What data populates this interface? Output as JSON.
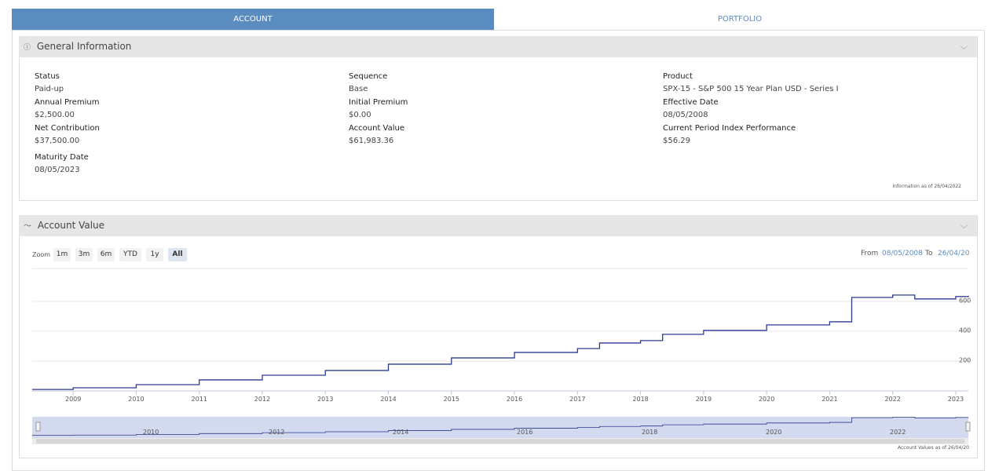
{
  "tabs": [
    "ACCOUNT",
    "PORTFOLIO"
  ],
  "general_info": {
    "title": "General Information",
    "columns": [
      [
        {
          "label": "Status",
          "value": "Paid-up"
        },
        {
          "label": "Annual Premium",
          "value": "$2,500.00"
        },
        {
          "label": "Net Contribution",
          "value": "$37,500.00"
        },
        {
          "label": "Maturity Date",
          "value": "08/05/2023"
        }
      ],
      [
        {
          "label": "Sequence",
          "value": "Base"
        },
        {
          "label": "Initial Premium",
          "value": "$0.00"
        },
        {
          "label": "Account Value",
          "value": "$61,983.36"
        }
      ],
      [
        {
          "label": "Product",
          "value": "SPX-15 - S&P 500 15 Year Plan USD - Series I"
        },
        {
          "label": "Effective Date",
          "value": "08/05/2008"
        },
        {
          "label": "Current Period Index Performance",
          "value": "$56.29"
        }
      ]
    ],
    "as_of": "Information as of 26/04/2022"
  },
  "account_value": {
    "title": "Account Value",
    "zoom_label": "Zoom",
    "zoom_buttons": [
      "1m",
      "3m",
      "6m",
      "YTD",
      "1y",
      "All"
    ],
    "from_label": "From",
    "from_date": "08/05/2008",
    "to_label": "To",
    "to_date": "26/04/20",
    "navigator_labels": [
      "2010",
      "2012",
      "2014",
      "2016",
      "2018",
      "2020",
      "2022"
    ],
    "as_of": "Account Values as of 26/04/20"
  },
  "chart_data": {
    "type": "line",
    "step": true,
    "color": "#2b3a8f",
    "grid": true,
    "x": [
      2008.35,
      2009,
      2010,
      2011,
      2012,
      2013,
      2014,
      2015,
      2016,
      2017,
      2017.35,
      2018,
      2018.35,
      2019,
      2020,
      2021,
      2021.35,
      2022,
      2022.35,
      2023,
      2023.2
    ],
    "values": [
      10,
      21,
      42,
      74,
      105,
      137,
      179,
      221,
      258,
      284,
      321,
      337,
      379,
      405,
      442,
      463,
      626,
      642,
      616,
      632,
      637
    ],
    "xlim": [
      2008.35,
      2023.2
    ],
    "xticks": [
      2009,
      2010,
      2011,
      2012,
      2013,
      2014,
      2015,
      2016,
      2017,
      2018,
      2019,
      2020,
      2021,
      2022,
      2023
    ],
    "ylim": [
      0,
      820
    ],
    "yticks": [
      200,
      400,
      600
    ]
  }
}
